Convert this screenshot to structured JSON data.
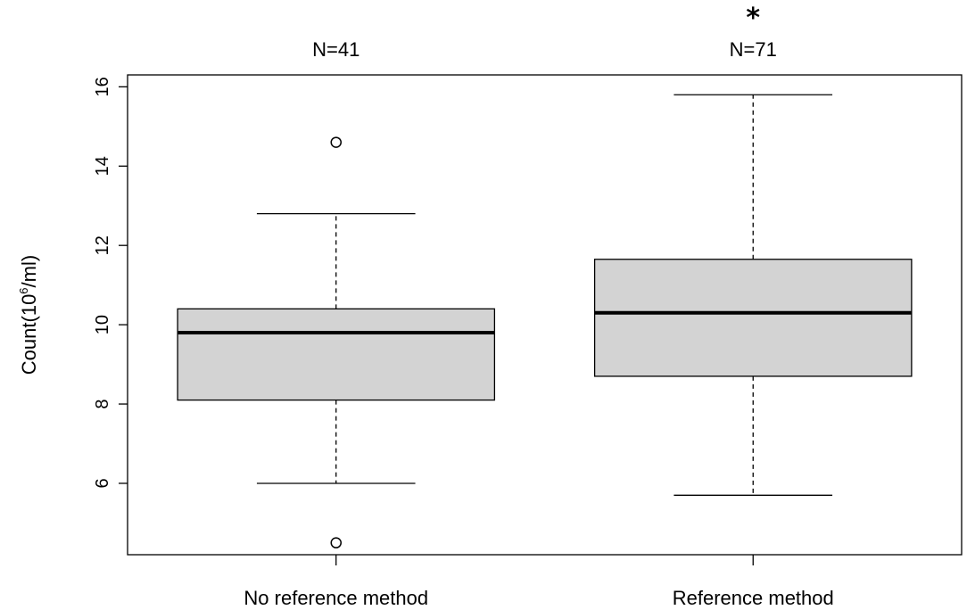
{
  "chart_data": {
    "type": "boxplot",
    "title": "",
    "xlabel": "",
    "ylabel": "Count(10",
    "ylabel_superscript": "6",
    "ylabel_suffix": "/ml)",
    "ylim": [
      4.2,
      16.3
    ],
    "yticks": [
      "6",
      "8",
      "10",
      "12",
      "14",
      "16"
    ],
    "grid": false,
    "legend": "none",
    "box_fill": "#d3d3d3",
    "line_color": "#000000",
    "categories": [
      "No reference method",
      "Reference method"
    ],
    "boxes": [
      {
        "category": "No reference method",
        "n_label": "N=41",
        "significance": "",
        "whisker_low": 6.0,
        "q1": 8.1,
        "median": 9.8,
        "q3": 10.4,
        "whisker_high": 12.8,
        "outliers": [
          14.6,
          4.5
        ]
      },
      {
        "category": "Reference method",
        "n_label": "N=71",
        "significance": "*",
        "whisker_low": 5.7,
        "q1": 8.7,
        "median": 10.3,
        "q3": 11.65,
        "whisker_high": 15.8,
        "outliers": []
      }
    ]
  }
}
